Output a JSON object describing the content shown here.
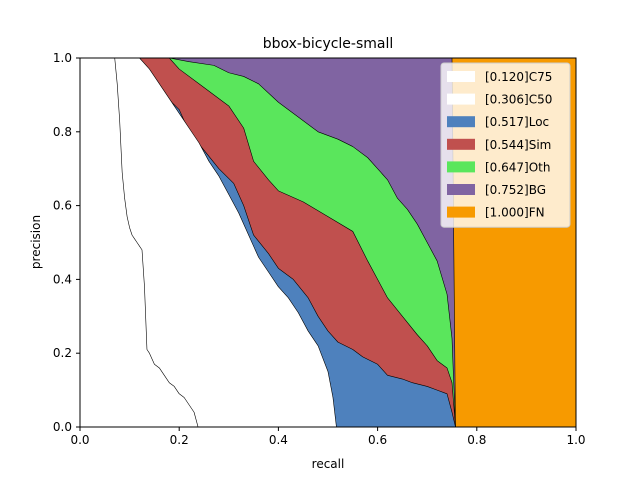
{
  "chart_data": {
    "type": "area",
    "title": "bbox-bicycle-small",
    "xlabel": "recall",
    "ylabel": "precision",
    "xlim": [
      0,
      1
    ],
    "ylim": [
      0,
      1
    ],
    "xticks": [
      "0.0",
      "0.2",
      "0.4",
      "0.6",
      "0.8",
      "1.0"
    ],
    "yticks": [
      "0.0",
      "0.2",
      "0.4",
      "0.6",
      "0.8",
      "1.0"
    ],
    "grid": false,
    "legend_position": "top-right",
    "series": [
      {
        "name": "[0.120]C75",
        "color": "#ffffff",
        "x": [
          0.07,
          0.075,
          0.08,
          0.085,
          0.09,
          0.095,
          0.1,
          0.105,
          0.11,
          0.115,
          0.12,
          0.125,
          0.13,
          0.135,
          0.14,
          0.15,
          0.16,
          0.17,
          0.18,
          0.19,
          0.2,
          0.21,
          0.22,
          0.23,
          0.238
        ],
        "y": [
          1.0,
          0.93,
          0.83,
          0.69,
          0.62,
          0.57,
          0.54,
          0.52,
          0.51,
          0.5,
          0.49,
          0.48,
          0.38,
          0.21,
          0.2,
          0.17,
          0.16,
          0.14,
          0.12,
          0.11,
          0.09,
          0.08,
          0.06,
          0.04,
          0.0
        ]
      },
      {
        "name": "[0.306]C50",
        "color": "#ffffff",
        "x": [
          0.12,
          0.14,
          0.16,
          0.18,
          0.2,
          0.22,
          0.24,
          0.26,
          0.28,
          0.3,
          0.32,
          0.34,
          0.36,
          0.38,
          0.4,
          0.42,
          0.44,
          0.46,
          0.48,
          0.5,
          0.51,
          0.517
        ],
        "y": [
          1.0,
          0.97,
          0.93,
          0.89,
          0.85,
          0.81,
          0.77,
          0.72,
          0.68,
          0.63,
          0.58,
          0.52,
          0.46,
          0.42,
          0.38,
          0.35,
          0.31,
          0.26,
          0.22,
          0.15,
          0.08,
          0.0
        ]
      },
      {
        "name": "[0.517]Loc",
        "color": "#4e81bd",
        "x": [
          0.12,
          0.13,
          0.15,
          0.17,
          0.2,
          0.22,
          0.25,
          0.28,
          0.31,
          0.33,
          0.35,
          0.38,
          0.4,
          0.43,
          0.46,
          0.48,
          0.5,
          0.52,
          0.55,
          0.57,
          0.6,
          0.62,
          0.65,
          0.67,
          0.7,
          0.72,
          0.74,
          0.75,
          0.757
        ],
        "y": [
          1.0,
          0.97,
          0.94,
          0.9,
          0.86,
          0.8,
          0.75,
          0.7,
          0.66,
          0.6,
          0.52,
          0.47,
          0.43,
          0.4,
          0.35,
          0.3,
          0.26,
          0.23,
          0.21,
          0.19,
          0.17,
          0.14,
          0.13,
          0.12,
          0.11,
          0.1,
          0.09,
          0.04,
          0.0
        ]
      },
      {
        "name": "[0.544]Sim",
        "color": "#c0504e",
        "x": [
          0.18,
          0.2,
          0.25,
          0.3,
          0.33,
          0.35,
          0.38,
          0.4,
          0.45,
          0.5,
          0.55,
          0.58,
          0.6,
          0.62,
          0.65,
          0.68,
          0.7,
          0.72,
          0.74,
          0.75,
          0.757
        ],
        "y": [
          1.0,
          0.97,
          0.92,
          0.87,
          0.81,
          0.72,
          0.67,
          0.64,
          0.61,
          0.57,
          0.53,
          0.45,
          0.4,
          0.35,
          0.3,
          0.25,
          0.22,
          0.18,
          0.16,
          0.12,
          0.0
        ]
      },
      {
        "name": "[0.647]Oth",
        "color": "#5ae65c",
        "x": [
          0.18,
          0.22,
          0.27,
          0.3,
          0.33,
          0.36,
          0.4,
          0.44,
          0.48,
          0.52,
          0.55,
          0.58,
          0.6,
          0.62,
          0.64,
          0.66,
          0.68,
          0.7,
          0.72,
          0.74,
          0.75,
          0.757
        ],
        "y": [
          1.0,
          0.99,
          0.98,
          0.96,
          0.95,
          0.93,
          0.88,
          0.84,
          0.8,
          0.78,
          0.76,
          0.73,
          0.7,
          0.67,
          0.62,
          0.59,
          0.55,
          0.5,
          0.45,
          0.36,
          0.24,
          0.0
        ]
      },
      {
        "name": "[0.752]BG",
        "color": "#8064a2",
        "x": [
          0.18,
          0.5,
          0.7,
          0.75,
          0.757
        ],
        "y": [
          1.0,
          1.0,
          1.0,
          1.0,
          0.0
        ]
      },
      {
        "name": "[1.000]FN",
        "color": "#f79a00",
        "x": [
          0.757,
          1.0
        ],
        "y": [
          1.0,
          1.0
        ]
      }
    ]
  }
}
